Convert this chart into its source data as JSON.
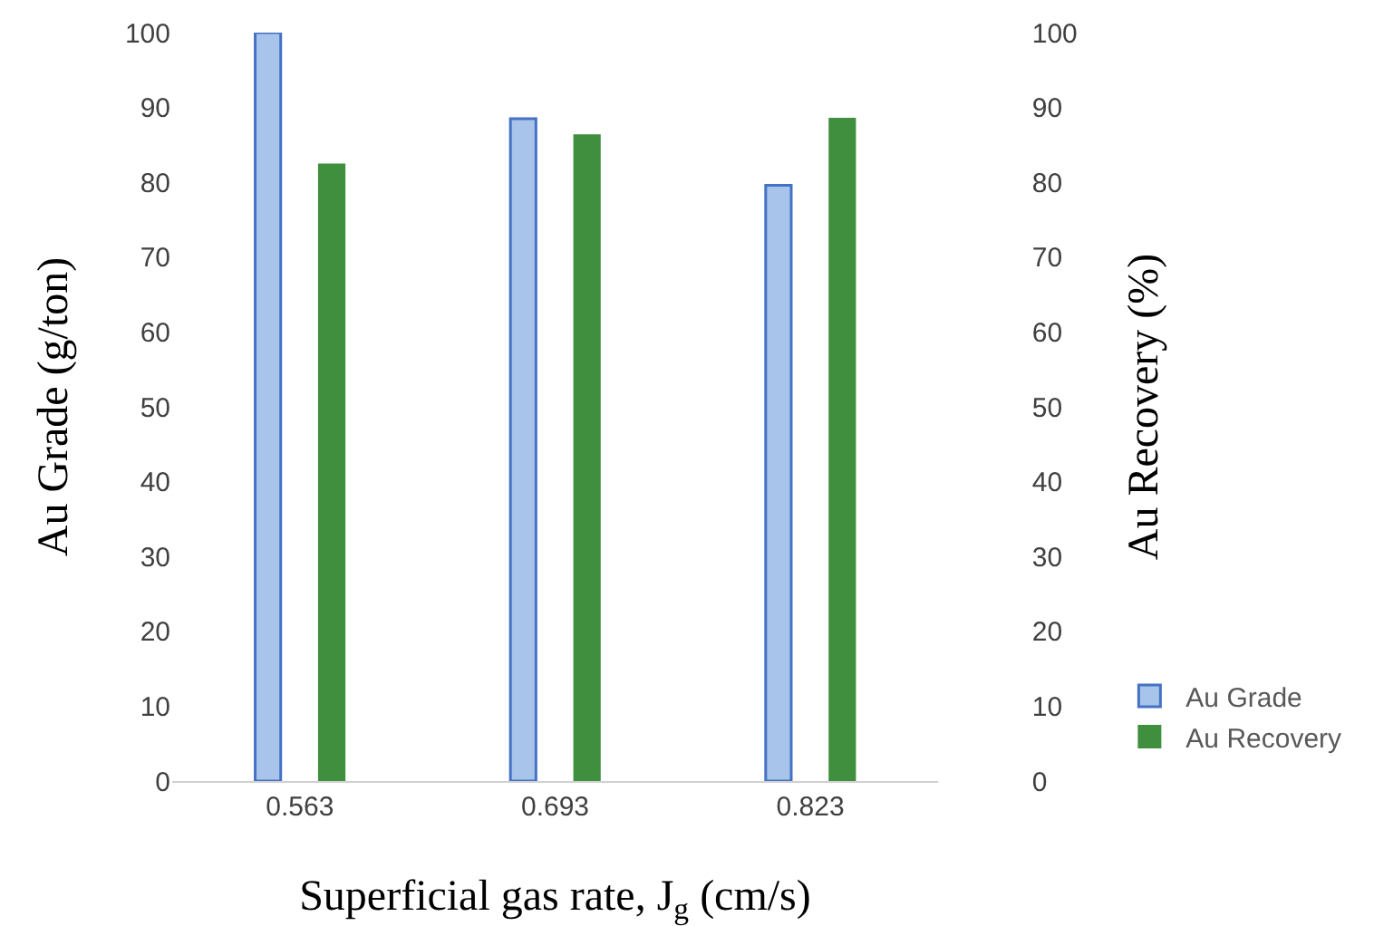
{
  "chart_data": {
    "type": "bar",
    "xlabel": "Superficial gas rate, J$_{g}$ (cm/s)",
    "ylabel": "Au Grade (g/ton)",
    "y2label": "Au Recovery (%)",
    "categories": [
      "0.563",
      "0.693",
      "0.823"
    ],
    "series": [
      {
        "name": "Au Grade",
        "color": "#a9c4eb",
        "values": [
          100,
          88.5,
          79.6
        ]
      },
      {
        "name": "Au Recovery",
        "color": "#3f8f3f",
        "values": [
          82.4,
          86.3,
          88.5
        ],
        "axis": "y2"
      }
    ],
    "ylim": [
      0,
      100
    ],
    "yticks": [
      0,
      10,
      20,
      30,
      40,
      50,
      60,
      70,
      80,
      90,
      100
    ],
    "y2lim": [
      0,
      100
    ],
    "y2ticks": [
      0,
      10,
      20,
      30,
      40,
      50,
      60,
      70,
      80,
      90,
      100
    ],
    "grid": false,
    "legend": "bottom right"
  }
}
